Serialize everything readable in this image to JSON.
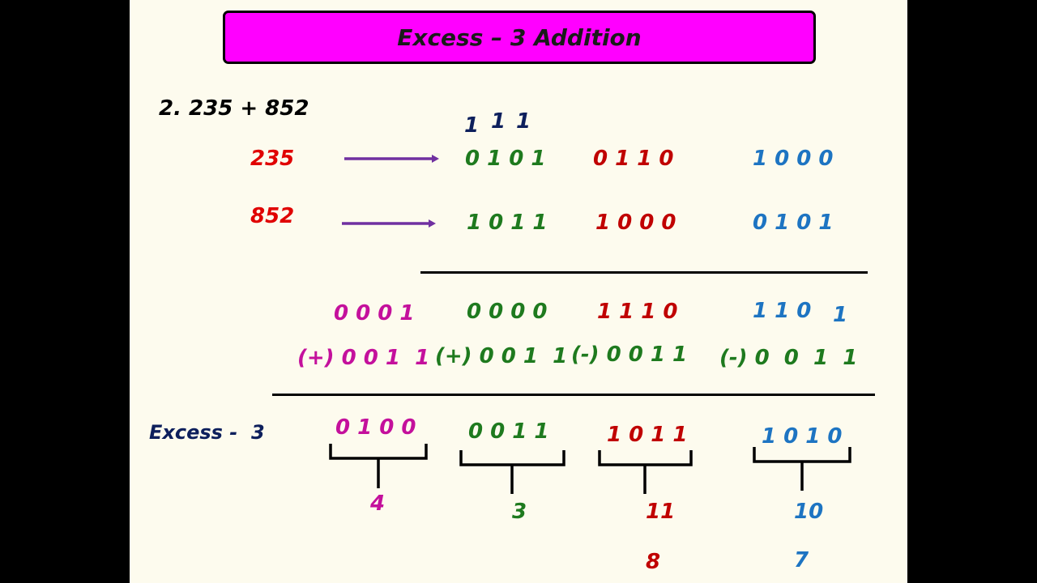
{
  "title": "Excess – 3 Addition",
  "problem": "2. 235 + 852",
  "carries": [
    "1",
    "1",
    "1"
  ],
  "operand1": {
    "label": "235",
    "groups": [
      "0 1 0 1",
      "0 1 1 0",
      "1 0 0 0"
    ]
  },
  "operand2": {
    "label": "852",
    "groups": [
      "1 0 1 1",
      "1 0 0 0",
      "0 1 0 1"
    ]
  },
  "sum": {
    "groups": [
      "0 0 0 1",
      "0 0 0 0",
      "1 1 1 0",
      "1 1 0",
      "1"
    ]
  },
  "correction": {
    "groups": [
      "(+) 0 0 1  1",
      "(+) 0 0 1  1",
      "(-) 0 0 1 1",
      "(-) 0  0  1  1"
    ]
  },
  "result": {
    "label": "Excess -  3",
    "groups": [
      "0 1 0 0",
      "0 0 1 1",
      "1 0 1 1",
      "1 0 1 0"
    ],
    "digit_values": [
      "4",
      "3",
      "11",
      "10"
    ],
    "final_values": [
      "8",
      "7"
    ]
  },
  "colors": {
    "title_fill": "#ff00ff",
    "navy": "#0d1f5c",
    "red": "#e00000",
    "green": "#1e7a1e",
    "maroon": "#c00000",
    "blue": "#1d74c2",
    "magenta": "#c4109c",
    "arrow": "#7030a0"
  }
}
